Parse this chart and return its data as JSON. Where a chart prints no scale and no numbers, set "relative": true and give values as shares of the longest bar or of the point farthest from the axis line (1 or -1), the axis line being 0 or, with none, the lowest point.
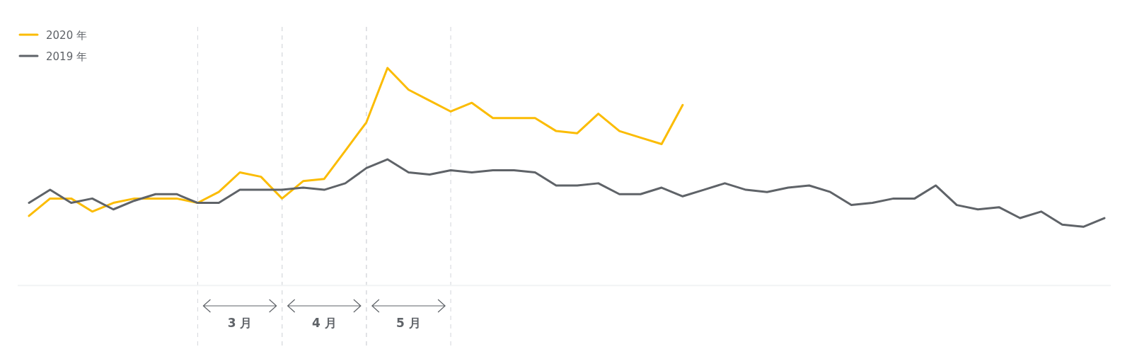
{
  "chart_data": {
    "type": "line",
    "relative": true,
    "categories": [
      null,
      null,
      null,
      null,
      null,
      null,
      null,
      null,
      null,
      null,
      "3 月",
      null,
      null,
      null,
      "4 月",
      null,
      null,
      null,
      "5 月",
      null,
      null,
      null,
      null,
      null,
      null,
      null,
      null,
      null,
      null,
      null,
      null,
      null,
      null,
      null,
      null,
      null,
      null,
      null,
      null,
      null,
      null,
      null,
      null,
      null,
      null,
      null,
      null,
      null,
      null,
      null,
      null,
      null
    ],
    "legend": "top left",
    "line_style": "solid",
    "series": [
      {
        "name": "2020 年",
        "color": "#fbbc04",
        "values": [
          0.32,
          0.4,
          0.4,
          0.34,
          0.38,
          0.4,
          0.4,
          0.4,
          0.38,
          0.43,
          0.52,
          0.5,
          0.4,
          0.48,
          0.49,
          0.62,
          0.75,
          1.0,
          0.9,
          0.85,
          0.8,
          0.84,
          0.77,
          0.77,
          0.77,
          0.71,
          0.7,
          0.79,
          0.71,
          0.68,
          0.65,
          0.83,
          null,
          null,
          null,
          null,
          null,
          null,
          null,
          null,
          null,
          null,
          null,
          null,
          null,
          null,
          null,
          null,
          null,
          null,
          null,
          null
        ]
      },
      {
        "name": "2019 年",
        "color": "#5f6368",
        "values": [
          0.38,
          0.44,
          0.38,
          0.4,
          0.35,
          0.39,
          0.42,
          0.42,
          0.38,
          0.38,
          0.44,
          0.44,
          0.44,
          0.45,
          0.44,
          0.47,
          0.54,
          0.58,
          0.52,
          0.51,
          0.53,
          0.52,
          0.53,
          0.53,
          0.52,
          0.46,
          0.46,
          0.47,
          0.42,
          0.42,
          0.45,
          0.41,
          0.44,
          0.47,
          0.44,
          0.43,
          0.45,
          0.46,
          0.43,
          0.37,
          0.38,
          0.4,
          0.4,
          0.46,
          0.37,
          0.35,
          0.36,
          0.31,
          0.34,
          0.28,
          0.27,
          0.31
        ]
      }
    ],
    "marker": "none",
    "grid": "x"
  }
}
